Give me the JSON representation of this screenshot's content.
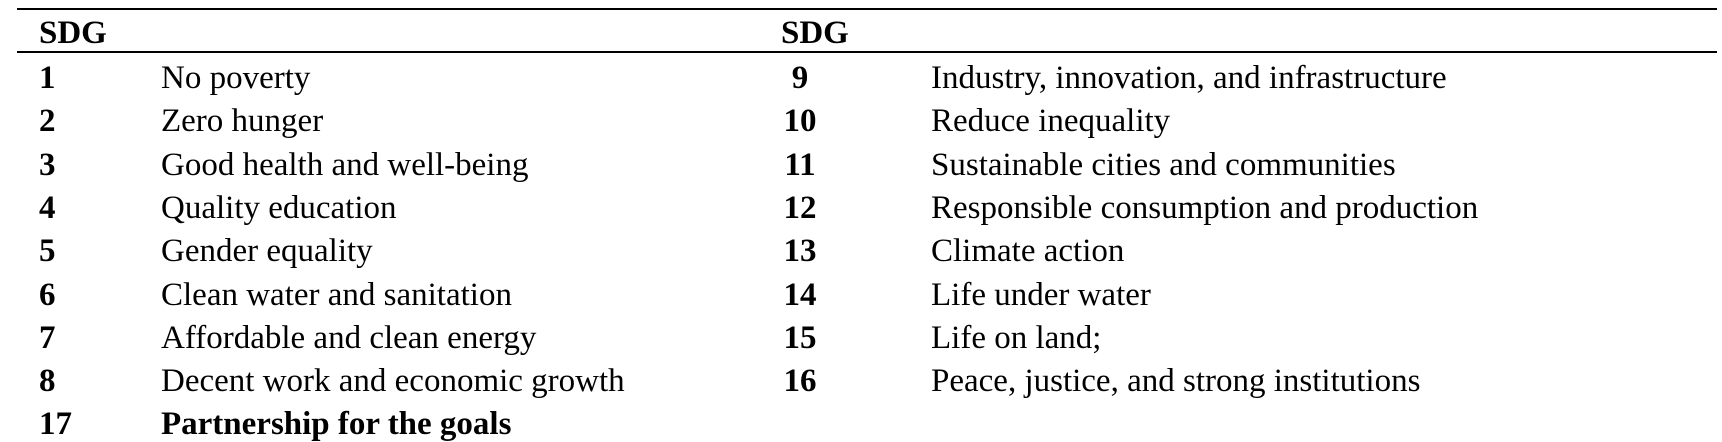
{
  "table": {
    "header": [
      "SDG",
      "SDG"
    ],
    "rows": [
      [
        "1",
        "No poverty",
        "9",
        "Industry, innovation, and infrastructure"
      ],
      [
        "2",
        "Zero hunger",
        "10",
        "Reduce inequality"
      ],
      [
        "3",
        "Good health and well-being",
        "11",
        "Sustainable cities and communities"
      ],
      [
        "4",
        "Quality education",
        "12",
        "Responsible consumption and production"
      ],
      [
        "5",
        "Gender equality",
        "13",
        "Climate action"
      ],
      [
        "6",
        "Clean water and sanitation",
        "14",
        "Life under water"
      ],
      [
        "7",
        "Affordable and clean energy",
        "15",
        "Life on land;"
      ],
      [
        "8",
        "Decent work and economic growth",
        "16",
        "Peace, justice, and strong institutions"
      ],
      [
        "17",
        "Partnership for the goals"
      ]
    ]
  }
}
